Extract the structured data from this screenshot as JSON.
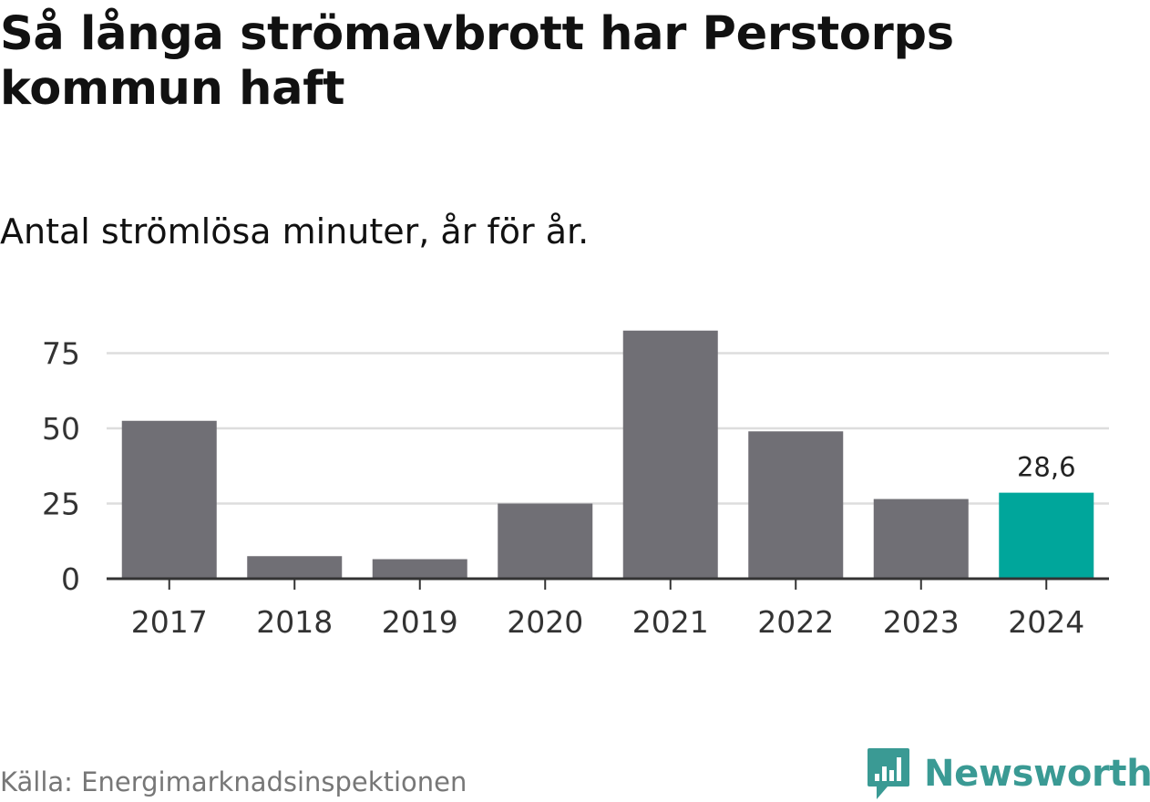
{
  "chart_data": {
    "type": "bar",
    "title": "Så långa strömavbrott har Perstorps kommun haft",
    "subtitle": "Antal strömlösa minuter, år för år.",
    "xlabel": "",
    "ylabel": "",
    "categories": [
      "2017",
      "2018",
      "2019",
      "2020",
      "2021",
      "2022",
      "2023",
      "2024"
    ],
    "values": [
      52.5,
      7.5,
      6.5,
      25,
      82.5,
      49,
      26.5,
      28.6
    ],
    "highlight_index": 7,
    "highlight_label": "28,6",
    "ylim": [
      0,
      90
    ],
    "yticks": [
      0,
      25,
      50,
      75
    ],
    "ytick_labels": [
      "0",
      "25",
      "50",
      "75"
    ],
    "grid": true,
    "colors": {
      "bar": "#706f75",
      "highlight": "#00a69b",
      "grid": "#dddddd",
      "axis": "#333333"
    }
  },
  "source": "Källa: Energimarknadsinspektionen",
  "brand": {
    "name": "Newsworthy",
    "color": "#3a9a94"
  }
}
